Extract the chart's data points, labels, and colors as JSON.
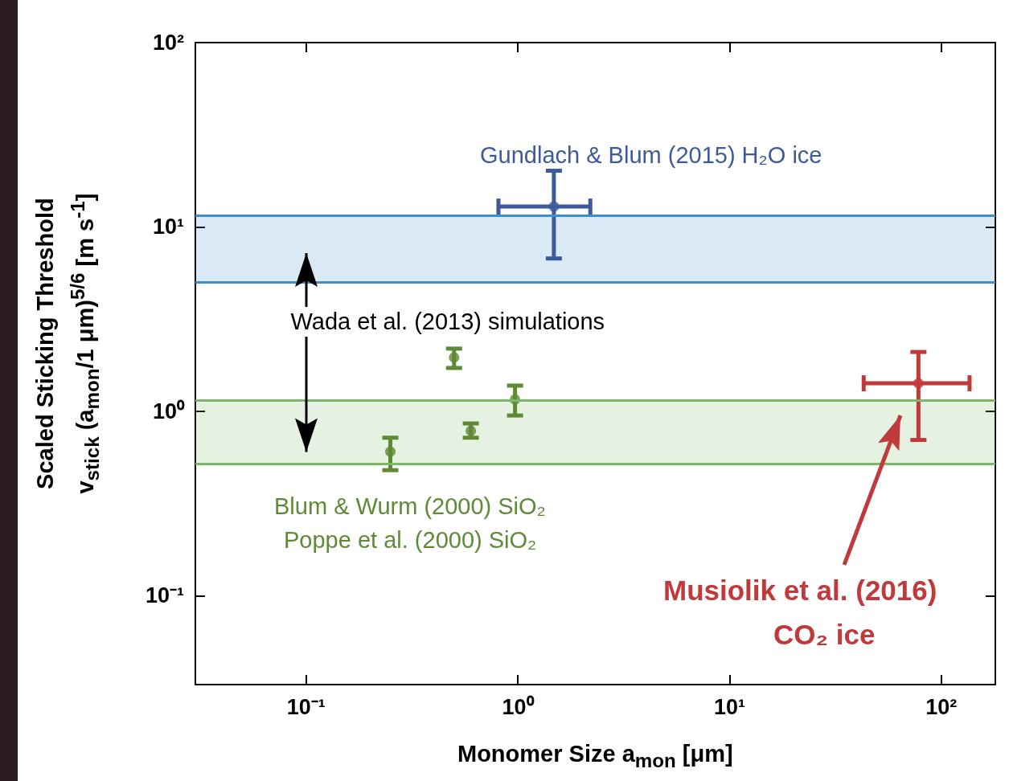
{
  "chart_data": {
    "type": "scatter",
    "xlabel": "Monomer Size  a$_{mon}$  [μm]",
    "ylabel": "Scaled Sticking Threshold\nv$_{stick}$ (a$_{mon}$/1 μm)$^{5/6}$  [m s$^{-1}$]",
    "log": "xy",
    "marker": "circle",
    "xlim": [
      0.03,
      180
    ],
    "ylim": [
      0.033,
      100
    ],
    "xticks": [
      {
        "value": 0.1,
        "label": "10⁻¹"
      },
      {
        "value": 1,
        "label": "10⁰"
      },
      {
        "value": 10,
        "label": "10¹"
      },
      {
        "value": 100,
        "label": "10²"
      }
    ],
    "yticks": [
      {
        "value": 0.1,
        "label": "10⁻¹"
      },
      {
        "value": 1,
        "label": "10⁰"
      },
      {
        "value": 10,
        "label": "10¹"
      },
      {
        "value": 100,
        "label": "10²"
      }
    ],
    "series": [
      {
        "color": "#3d5a9a",
        "x": [
          1.48
        ],
        "values": [
          12.9
        ],
        "errors": [
          [
            6.75,
            20.2
          ]
        ],
        "xerrors": [
          [
            0.81,
            2.2
          ]
        ]
      },
      {
        "color": "#5f8a35",
        "x": [
          0.25,
          0.5,
          0.6,
          0.97
        ],
        "values": [
          0.605,
          1.96,
          0.785,
          1.16
        ],
        "errors": [
          [
            0.48,
            0.72
          ],
          [
            1.72,
            2.19
          ],
          [
            0.72,
            0.86
          ],
          [
            0.95,
            1.38
          ]
        ]
      },
      {
        "color": "#c0393b",
        "x": [
          78
        ],
        "values": [
          1.42
        ],
        "errors": [
          [
            0.7,
            2.1
          ]
        ],
        "xerrors": [
          [
            43,
            136
          ]
        ]
      }
    ],
    "bands": [
      {
        "axis": "y",
        "from": 5,
        "to": 11.5,
        "color": "#3f8fcc"
      },
      {
        "axis": "y",
        "from": 0.52,
        "to": 1.15,
        "color": "#7cb86a"
      }
    ],
    "ref_lines": [
      {
        "axis": "y",
        "value": 5,
        "color": "#3f8fcc"
      },
      {
        "axis": "y",
        "value": 11.5,
        "color": "#3f8fcc"
      },
      {
        "axis": "y",
        "value": 0.52,
        "color": "#7cb86a"
      },
      {
        "axis": "y",
        "value": 1.15,
        "color": "#7cb86a"
      }
    ],
    "annotations": [
      "Gundlach & Blum (2015) H₂O ice",
      "Wada et al. (2013) simulations",
      "Blum & Wurm (2000) SiO₂",
      "Poppe et al. (2000) SiO₂",
      "Musiolik et al. (2016)",
      "CO₂ ice"
    ]
  }
}
